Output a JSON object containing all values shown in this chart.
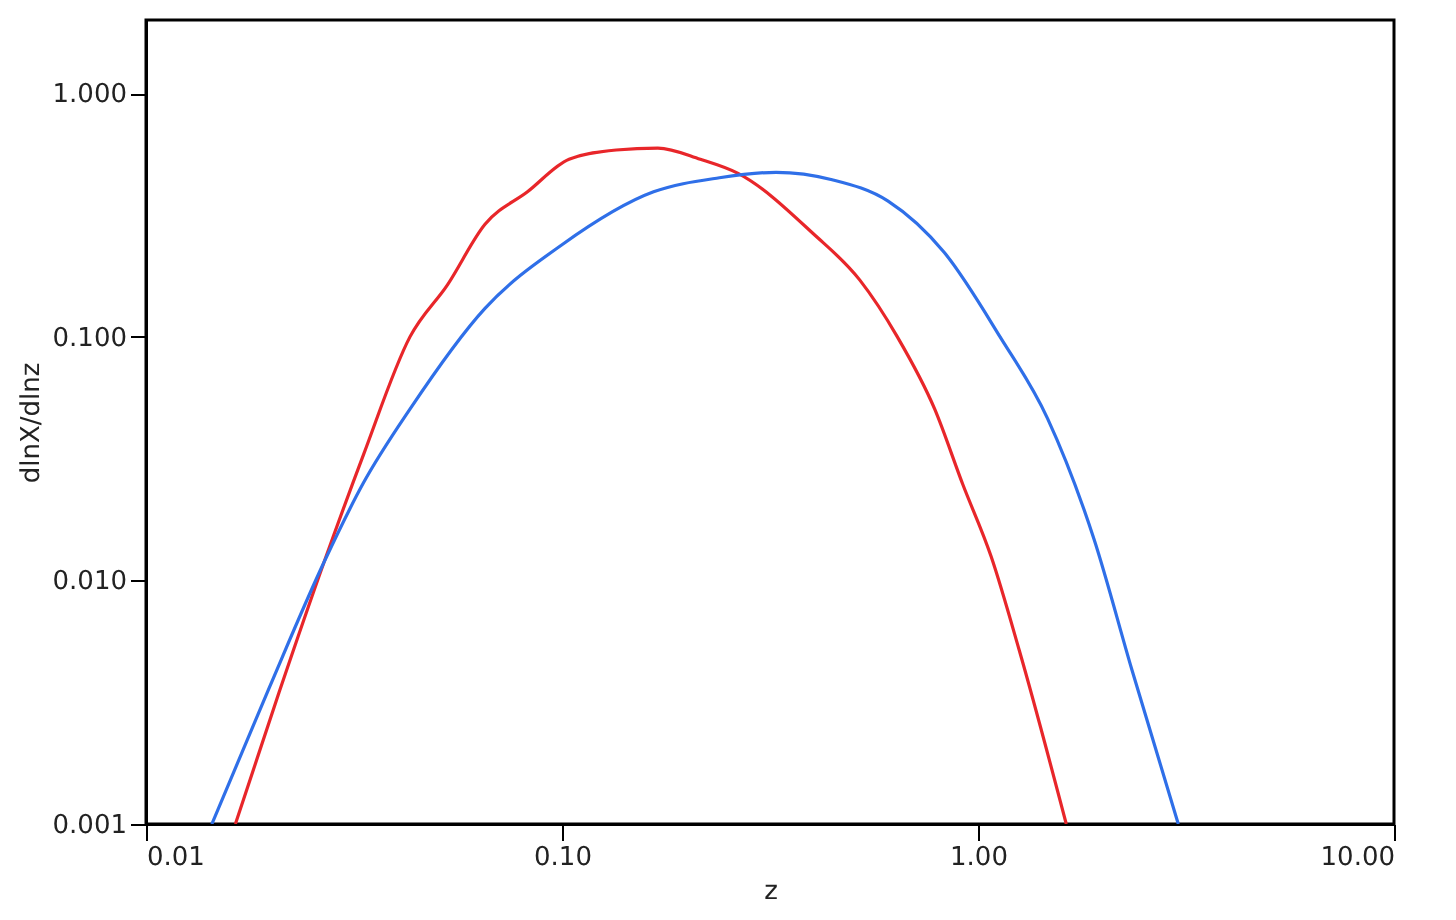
{
  "chart_data": {
    "type": "line",
    "xlabel": "z",
    "ylabel": "dlnX/dlnz",
    "log": "xy",
    "xlim": [
      0.01,
      10
    ],
    "ylim": [
      0.001,
      2
    ],
    "xticks": [
      0.01,
      {
        "value": 0.1,
        "label": "0.10"
      },
      {
        "value": 1,
        "label": "1.00"
      },
      {
        "value": 10,
        "label": "10.00"
      }
    ],
    "yticks": [
      0.001,
      {
        "value": 0.01,
        "label": "0.010"
      },
      {
        "value": 0.1,
        "label": "0.100"
      },
      {
        "value": 1,
        "label": "1.000"
      }
    ],
    "grid": false,
    "marker": "none",
    "line_style": "solid",
    "series": [
      {
        "color": "#e8262a",
        "x": [
          0.0164,
          0.0209,
          0.0268,
          0.0333,
          0.0431,
          0.0531,
          0.0653,
          0.0826,
          0.104,
          0.135,
          0.17,
          0.215,
          0.265,
          0.402,
          0.52,
          0.64,
          0.787,
          0.92,
          1.076,
          1.256,
          1.63
        ],
        "values": [
          0.001,
          0.00348,
          0.0119,
          0.0327,
          0.1,
          0.164,
          0.29,
          0.394,
          0.536,
          0.585,
          0.596,
          0.536,
          0.469,
          0.265,
          0.171,
          0.1,
          0.0505,
          0.0247,
          0.0125,
          0.00518,
          0.001
        ]
      },
      {
        "color": "#2f6fe8",
        "x": [
          0.0144,
          0.0198,
          0.0268,
          0.0333,
          0.0431,
          0.0653,
          0.1,
          0.166,
          0.239,
          0.327,
          0.446,
          0.608,
          0.83,
          1.13,
          1.47,
          1.9,
          2.34,
          3.03
        ],
        "values": [
          0.001,
          0.00364,
          0.0119,
          0.0251,
          0.0505,
          0.131,
          0.239,
          0.394,
          0.45,
          0.474,
          0.442,
          0.361,
          0.222,
          0.1,
          0.0462,
          0.0148,
          0.00434,
          0.001
        ]
      }
    ]
  }
}
